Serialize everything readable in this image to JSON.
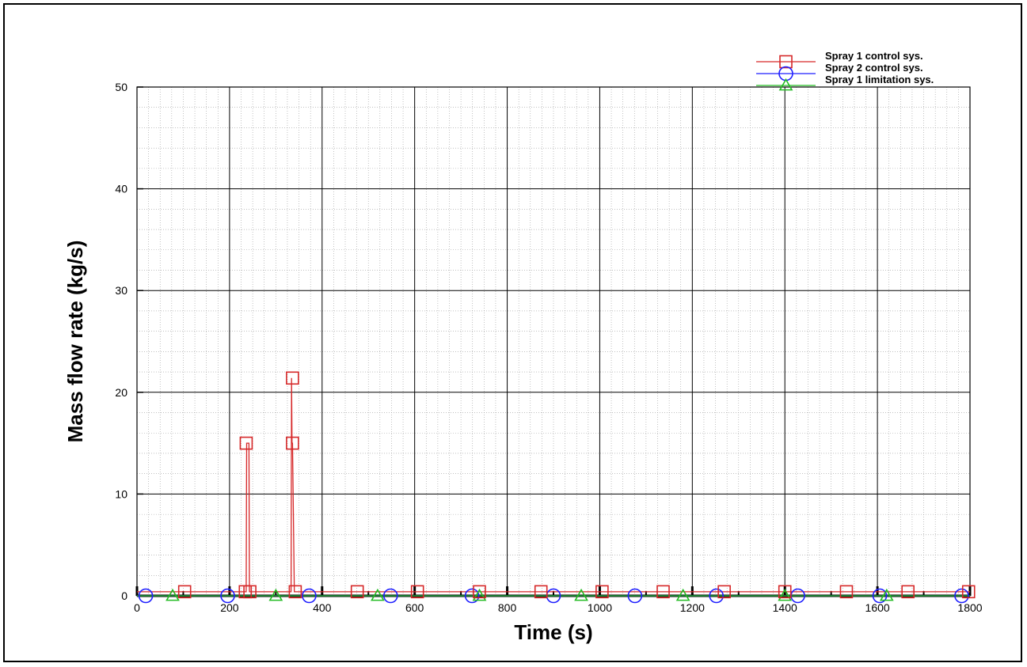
{
  "chart_data": {
    "type": "line",
    "xlabel": "Time (s)",
    "ylabel": "Mass flow rate (kg/s)",
    "xlim": [
      0,
      1800
    ],
    "ylim": [
      0,
      50
    ],
    "x_ticks": [
      0,
      200,
      400,
      600,
      800,
      1000,
      1200,
      1400,
      1600,
      1800
    ],
    "y_ticks": [
      0,
      10,
      20,
      30,
      40,
      50
    ],
    "grid": true,
    "legend_position": "top-right",
    "series": [
      {
        "name": "Spray 1 control sys.",
        "color": "#d62728",
        "marker": "square",
        "line": [
          [
            0,
            0.4
          ],
          [
            236,
            0.4
          ],
          [
            237,
            15
          ],
          [
            242,
            15
          ],
          [
            243,
            0.4
          ],
          [
            333,
            0.4
          ],
          [
            334,
            21.4
          ],
          [
            335,
            15
          ],
          [
            336,
            15
          ],
          [
            340,
            0.4
          ],
          [
            1800,
            0.4
          ]
        ],
        "markers": [
          [
            103,
            0.4
          ],
          [
            234,
            0.4
          ],
          [
            236,
            15
          ],
          [
            244,
            0.4
          ],
          [
            336,
            21.4
          ],
          [
            336,
            15
          ],
          [
            342,
            0.4
          ],
          [
            476,
            0.4
          ],
          [
            606,
            0.4
          ],
          [
            740,
            0.4
          ],
          [
            873,
            0.4
          ],
          [
            1005,
            0.4
          ],
          [
            1137,
            0.4
          ],
          [
            1269,
            0.4
          ],
          [
            1400,
            0.4
          ],
          [
            1533,
            0.4
          ],
          [
            1666,
            0.4
          ],
          [
            1797,
            0.4
          ]
        ]
      },
      {
        "name": "Spray 2 control sys.",
        "color": "#1f1fff",
        "marker": "circle",
        "line": [
          [
            0,
            0
          ],
          [
            1800,
            0
          ]
        ],
        "markers": [
          [
            19,
            0
          ],
          [
            196,
            0
          ],
          [
            372,
            0
          ],
          [
            548,
            0
          ],
          [
            724,
            0
          ],
          [
            900,
            0
          ],
          [
            1076,
            0
          ],
          [
            1252,
            0
          ],
          [
            1428,
            0
          ],
          [
            1605,
            0
          ],
          [
            1782,
            0
          ]
        ]
      },
      {
        "name": "Spray 1 limitation sys.",
        "color": "#22bb22",
        "marker": "triangle",
        "line": [
          [
            0,
            0
          ],
          [
            1800,
            0
          ]
        ],
        "markers": [
          [
            77,
            0
          ],
          [
            300,
            0
          ],
          [
            520,
            0
          ],
          [
            740,
            0
          ],
          [
            960,
            0
          ],
          [
            1180,
            0
          ],
          [
            1400,
            0
          ],
          [
            1620,
            0
          ]
        ]
      }
    ]
  }
}
